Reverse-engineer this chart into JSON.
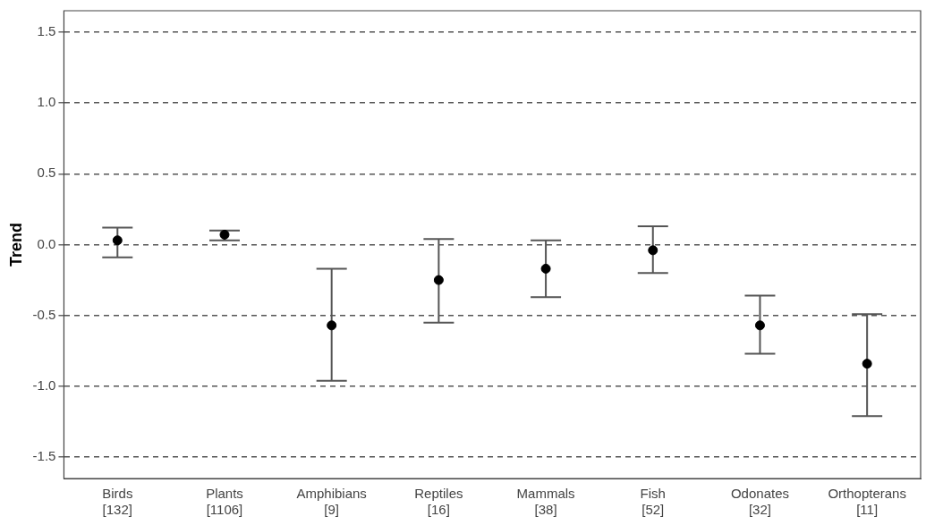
{
  "chart_data": {
    "type": "scatter",
    "ylabel": "Trend",
    "categories": [
      "Birds\n[132]",
      "Plants\n[1106]",
      "Amphibians\n[9]",
      "Reptiles\n[16]",
      "Mammals\n[38]",
      "Fish\n[52]",
      "Odonates\n[32]",
      "Orthopterans\n[11]"
    ],
    "series": [
      {
        "color": "#000000",
        "values": [
          0.03,
          0.07,
          -0.57,
          -0.25,
          -0.17,
          -0.04,
          -0.57,
          -0.84
        ],
        "errors": [
          [
            -0.09,
            0.12
          ],
          [
            0.03,
            0.1
          ],
          [
            -0.96,
            -0.17
          ],
          [
            -0.55,
            0.04
          ],
          [
            -0.37,
            0.03
          ],
          [
            -0.2,
            0.13
          ],
          [
            -0.77,
            -0.36
          ],
          [
            -1.21,
            -0.49
          ]
        ]
      }
    ],
    "ylim": [
      -1.65,
      1.65
    ],
    "yticks": [
      {
        "value": -1.5,
        "label": "-1.5"
      },
      {
        "value": -1,
        "label": "-1.0"
      },
      {
        "value": -0.5,
        "label": "-0.5"
      },
      {
        "value": 0,
        "label": "0.0"
      },
      {
        "value": 0.5,
        "label": "0.5"
      },
      {
        "value": 1,
        "label": "1.0"
      },
      {
        "value": 1.5,
        "label": "1.5"
      }
    ],
    "grid": "y",
    "line_style": "dashed",
    "marker": "circle",
    "legend": false
  }
}
